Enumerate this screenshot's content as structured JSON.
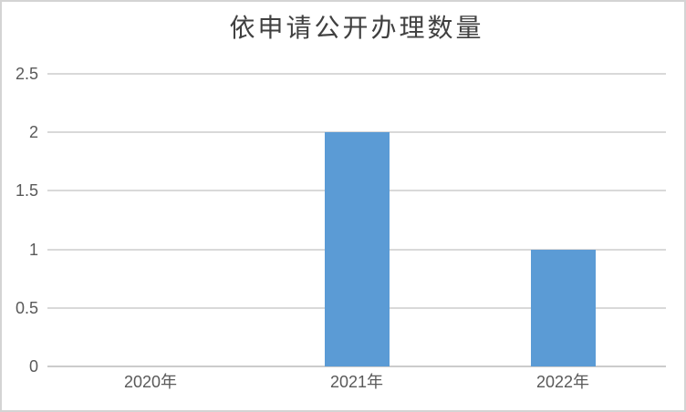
{
  "chart_data": {
    "type": "bar",
    "title": "依申请公开办理数量",
    "categories": [
      "2020年",
      "2021年",
      "2022年"
    ],
    "values": [
      0,
      2,
      1
    ],
    "xlabel": "",
    "ylabel": "",
    "ylim": [
      0,
      2.5
    ],
    "yticks": [
      0,
      0.5,
      1,
      1.5,
      2,
      2.5
    ],
    "ytick_labels": [
      "0",
      "0.5",
      "1",
      "1.5",
      "2",
      "2.5"
    ],
    "grid": true,
    "legend": false,
    "legend_position": "none",
    "colors": {
      "bar": "#5B9BD5",
      "gridline": "#D9D9D9",
      "axis_line": "#CCCCCC",
      "tick_text": "#595959",
      "title_text": "#404040",
      "background": "#FFFFFF",
      "frame_border": "#D4D4D4"
    }
  }
}
